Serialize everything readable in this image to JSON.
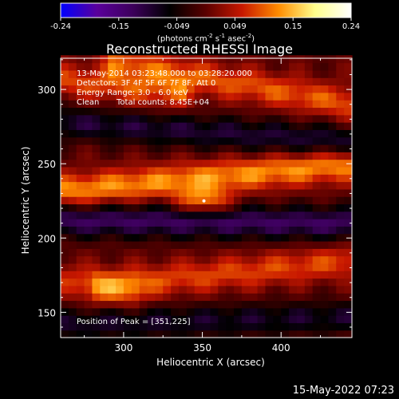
{
  "chart_data": {
    "type": "heatmap",
    "title": "Reconstructed RHESSI Image",
    "xlabel": "Heliocentric X (arcsec)",
    "ylabel": "Heliocentric Y (arcsec)",
    "xlim": [
      260,
      445
    ],
    "ylim": [
      133,
      321
    ],
    "x_ticks": [
      300,
      350,
      400
    ],
    "y_ticks": [
      150,
      200,
      250,
      300
    ],
    "colorbar": {
      "min": -0.24,
      "max": 0.24,
      "tick_labels": [
        "-0.24",
        "-0.15",
        "-0.049",
        "0.049",
        "0.15",
        "0.24"
      ],
      "units_main": "(photons cm",
      "units_exp1": "-2",
      "units_mid": " s",
      "units_exp2": "-1",
      "units_tail": " asec",
      "units_exp3": "-2",
      "units_close": ")",
      "colors": [
        "#0000ff",
        "#5a009c",
        "#3c005a",
        "#000000",
        "#5a0000",
        "#c81800",
        "#ff8c00",
        "#ffff8c",
        "#ffffff"
      ]
    },
    "annotations": {
      "time_range": "13-May-2014 03:23:48.000 to 03:28:20.000",
      "detectors": "Detectors: 3F 4F 5F 6F 7F 8F, Att 0",
      "energy_range": "Energy Range: 3.0 - 6.0 keV",
      "clean_label": "Clean",
      "total_counts": "Total counts: 8.45E+04",
      "peak_position": "Position of Peak = [351,225]"
    },
    "peak": {
      "x": 351,
      "y": 225,
      "value": 0.24
    },
    "bands": [
      {
        "name": "top-right",
        "x": [
          300,
          445
        ],
        "y": [
          318,
          290
        ],
        "value": 0.09
      },
      {
        "name": "upper-left",
        "x": [
          262,
          330
        ],
        "y": [
          306,
          298
        ],
        "value": 0.08
      },
      {
        "name": "main",
        "x": [
          265,
          445
        ],
        "y": [
          232,
          250
        ],
        "value": 0.12
      },
      {
        "name": "lower",
        "x": [
          290,
          445
        ],
        "y": [
          168,
          185
        ],
        "value": 0.08
      },
      {
        "name": "bottom-left",
        "x": [
          262,
          300
        ],
        "y": [
          172,
          165
        ],
        "value": 0.06
      },
      {
        "name": "negative-1",
        "x": [
          262,
          445
        ],
        "y": [
          278,
          265
        ],
        "value": -0.09
      },
      {
        "name": "negative-2",
        "x": [
          262,
          445
        ],
        "y": [
          212,
          210
        ],
        "value": -0.12
      },
      {
        "name": "negative-3",
        "x": [
          262,
          445
        ],
        "y": [
          142,
          147
        ],
        "value": -0.08
      }
    ]
  },
  "footer": {
    "timestamp": "15-May-2022 07:23"
  }
}
